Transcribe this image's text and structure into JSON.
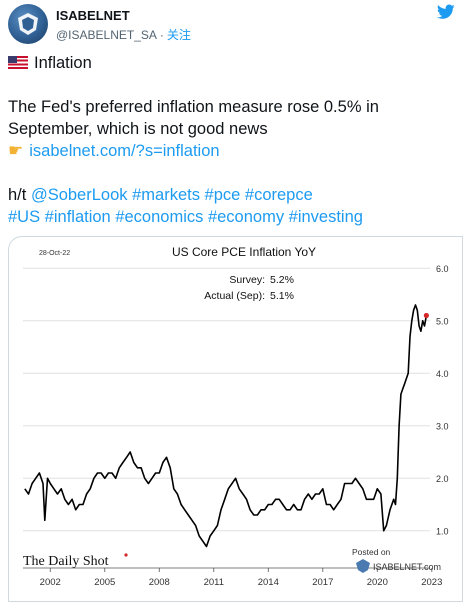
{
  "account": {
    "name": "ISABELNET",
    "handle": "@ISABELNET_SA",
    "separator": "·",
    "follow_label": "关注"
  },
  "tweet": {
    "line1": "Inflation",
    "line2": "The Fed's preferred inflation measure rose 0.5% in",
    "line3": "September, which is not good news",
    "link": "isabelnet.com/?s=inflation",
    "ht_prefix": "h/t",
    "mention": "@SoberLook",
    "hashtags_line1": "#markets #pce #corepce",
    "hashtags_line2": "#US #inflation #economics #economy #investing"
  },
  "chart_data": {
    "type": "line",
    "title": "US Core PCE Inflation YoY",
    "date_label": "28-Oct-22",
    "survey_label": "Survey:",
    "survey_value": "5.2%",
    "actual_label": "Actual (Sep):",
    "actual_value": "5.1%",
    "branding": "The Daily Shot",
    "posted_on": "Posted on",
    "posted_site": "ISABELNET.com",
    "xlim": [
      2000.5,
      2022.9
    ],
    "ylim": [
      0.5,
      6.1
    ],
    "y_ticks": [
      "1.0",
      "2.0",
      "3.0",
      "4.0",
      "5.0",
      "6.0"
    ],
    "x_ticks": [
      "2002",
      "2005",
      "2008",
      "2011",
      "2014",
      "2017",
      "2020",
      "2023"
    ],
    "grid": "horizontal",
    "colors": {
      "line": "#000000",
      "marker": "#d62728",
      "grid": "#e0e0e0"
    },
    "series": [
      {
        "x": [
          2000.6,
          2000.8,
          2001.0,
          2001.2,
          2001.4,
          2001.6,
          2001.7,
          2001.85,
          2002.0,
          2002.2,
          2002.4,
          2002.6,
          2002.8,
          2003.0,
          2003.2,
          2003.4,
          2003.6,
          2003.8,
          2004.0,
          2004.2,
          2004.4,
          2004.6,
          2004.8,
          2005.0,
          2005.2,
          2005.4,
          2005.6,
          2005.8,
          2006.0,
          2006.2,
          2006.4,
          2006.6,
          2006.8,
          2007.0,
          2007.2,
          2007.4,
          2007.6,
          2007.8,
          2008.0,
          2008.2,
          2008.4,
          2008.6,
          2008.8,
          2009.0,
          2009.2,
          2009.4,
          2009.6,
          2009.8,
          2010.0,
          2010.2,
          2010.4,
          2010.6,
          2010.8,
          2011.0,
          2011.2,
          2011.4,
          2011.6,
          2011.8,
          2012.0,
          2012.2,
          2012.4,
          2012.6,
          2012.8,
          2013.0,
          2013.2,
          2013.4,
          2013.6,
          2013.8,
          2014.0,
          2014.2,
          2014.4,
          2014.6,
          2014.8,
          2015.0,
          2015.2,
          2015.4,
          2015.6,
          2015.8,
          2016.0,
          2016.2,
          2016.4,
          2016.6,
          2016.8,
          2017.0,
          2017.2,
          2017.4,
          2017.6,
          2017.8,
          2018.0,
          2018.2,
          2018.4,
          2018.6,
          2018.8,
          2019.0,
          2019.2,
          2019.4,
          2019.6,
          2019.8,
          2020.0,
          2020.2,
          2020.35,
          2020.5,
          2020.7,
          2020.9,
          2021.0,
          2021.1,
          2021.2,
          2021.3,
          2021.4,
          2021.5,
          2021.6,
          2021.7,
          2021.8,
          2021.9,
          2022.0,
          2022.1,
          2022.2,
          2022.3,
          2022.4,
          2022.5,
          2022.6,
          2022.7
        ],
        "y": [
          1.8,
          1.7,
          1.9,
          2.0,
          2.1,
          1.9,
          1.2,
          2.0,
          1.9,
          1.8,
          1.7,
          1.8,
          1.6,
          1.5,
          1.6,
          1.4,
          1.5,
          1.5,
          1.7,
          1.8,
          2.0,
          2.1,
          2.1,
          2.0,
          2.1,
          2.1,
          2.0,
          2.2,
          2.3,
          2.4,
          2.5,
          2.3,
          2.2,
          2.2,
          2.0,
          1.9,
          2.0,
          2.1,
          2.1,
          2.3,
          2.4,
          2.2,
          1.8,
          1.7,
          1.5,
          1.4,
          1.3,
          1.2,
          1.1,
          0.9,
          0.8,
          0.7,
          0.9,
          1.0,
          1.1,
          1.4,
          1.6,
          1.8,
          1.9,
          2.0,
          1.8,
          1.7,
          1.6,
          1.4,
          1.3,
          1.3,
          1.4,
          1.4,
          1.5,
          1.5,
          1.6,
          1.6,
          1.5,
          1.4,
          1.4,
          1.5,
          1.4,
          1.4,
          1.6,
          1.7,
          1.6,
          1.7,
          1.7,
          1.8,
          1.5,
          1.5,
          1.4,
          1.5,
          1.6,
          1.9,
          1.9,
          1.9,
          2.0,
          1.9,
          1.8,
          1.6,
          1.6,
          1.6,
          1.8,
          1.7,
          1.0,
          1.1,
          1.4,
          1.6,
          1.5,
          2.0,
          3.0,
          3.6,
          3.7,
          3.8,
          3.9,
          4.0,
          4.7,
          5.0,
          5.2,
          5.3,
          5.2,
          4.9,
          4.8,
          5.0,
          4.9,
          5.1
        ]
      }
    ]
  }
}
